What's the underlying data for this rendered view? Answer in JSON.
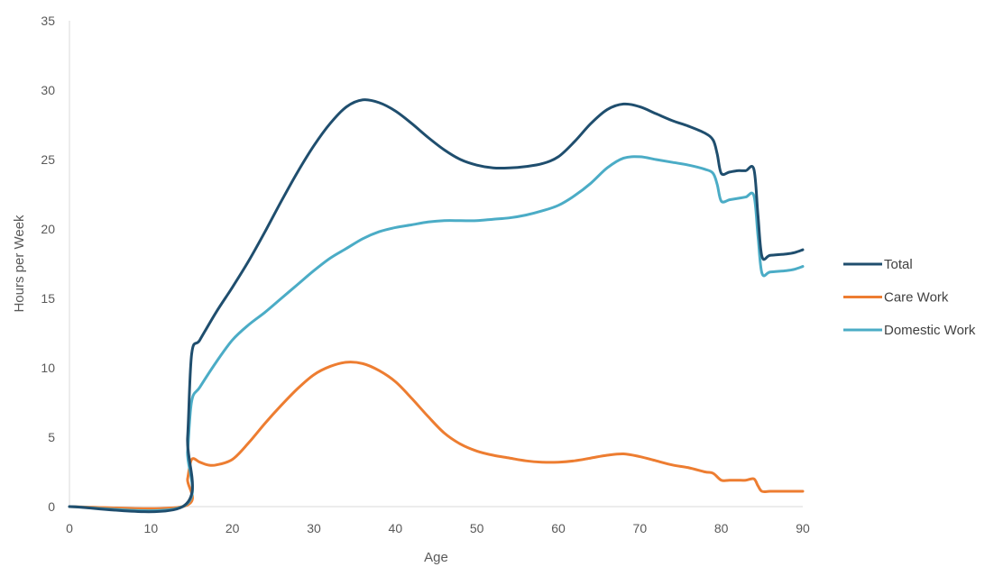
{
  "chart_data": {
    "type": "line",
    "xlabel": "Age",
    "ylabel": "Hours per Week",
    "xlim": [
      0,
      90
    ],
    "ylim": [
      0,
      35
    ],
    "xticks": [
      "0",
      "10",
      "20",
      "30",
      "40",
      "50",
      "60",
      "70",
      "80",
      "90"
    ],
    "yticks": [
      "0",
      "5",
      "10",
      "15",
      "20",
      "25",
      "30",
      "35"
    ],
    "grid": false,
    "legend_position": "right",
    "series": [
      {
        "name": "Total",
        "color": "#1f4e6e",
        "points": [
          [
            0,
            0
          ],
          [
            13.9,
            0
          ],
          [
            14.5,
            5
          ],
          [
            15,
            11
          ],
          [
            16,
            12
          ],
          [
            18,
            14
          ],
          [
            20,
            15.8
          ],
          [
            22,
            17.7
          ],
          [
            24,
            19.8
          ],
          [
            26,
            22
          ],
          [
            28,
            24.1
          ],
          [
            30,
            26
          ],
          [
            32,
            27.6
          ],
          [
            34,
            28.8
          ],
          [
            36,
            29.3
          ],
          [
            38,
            29.1
          ],
          [
            40,
            28.5
          ],
          [
            42,
            27.6
          ],
          [
            44,
            26.6
          ],
          [
            46,
            25.7
          ],
          [
            48,
            25
          ],
          [
            50,
            24.6
          ],
          [
            52,
            24.4
          ],
          [
            54,
            24.4
          ],
          [
            56,
            24.5
          ],
          [
            58,
            24.7
          ],
          [
            60,
            25.2
          ],
          [
            62,
            26.3
          ],
          [
            64,
            27.6
          ],
          [
            66,
            28.6
          ],
          [
            68,
            29
          ],
          [
            70,
            28.8
          ],
          [
            72,
            28.3
          ],
          [
            74,
            27.8
          ],
          [
            76,
            27.4
          ],
          [
            78,
            26.9
          ],
          [
            79,
            26.4
          ],
          [
            79.5,
            25.4
          ],
          [
            80,
            24
          ],
          [
            81,
            24.1
          ],
          [
            82,
            24.2
          ],
          [
            83,
            24.2
          ],
          [
            84,
            24.3
          ],
          [
            84.5,
            21
          ],
          [
            85,
            18
          ],
          [
            86,
            18.1
          ],
          [
            88,
            18.2
          ],
          [
            89,
            18.3
          ],
          [
            90,
            18.5
          ]
        ]
      },
      {
        "name": "Care Work",
        "color": "#ed7d31",
        "points": [
          [
            0,
            0
          ],
          [
            13.9,
            0
          ],
          [
            14.5,
            2
          ],
          [
            15,
            3.4
          ],
          [
            16,
            3.2
          ],
          [
            17,
            3
          ],
          [
            18,
            3
          ],
          [
            20,
            3.4
          ],
          [
            22,
            4.6
          ],
          [
            24,
            6
          ],
          [
            26,
            7.3
          ],
          [
            28,
            8.5
          ],
          [
            30,
            9.5
          ],
          [
            32,
            10.1
          ],
          [
            34,
            10.4
          ],
          [
            36,
            10.3
          ],
          [
            38,
            9.8
          ],
          [
            40,
            9
          ],
          [
            42,
            7.8
          ],
          [
            44,
            6.5
          ],
          [
            46,
            5.3
          ],
          [
            48,
            4.5
          ],
          [
            50,
            4
          ],
          [
            52,
            3.7
          ],
          [
            54,
            3.5
          ],
          [
            56,
            3.3
          ],
          [
            58,
            3.2
          ],
          [
            60,
            3.2
          ],
          [
            62,
            3.3
          ],
          [
            64,
            3.5
          ],
          [
            66,
            3.7
          ],
          [
            68,
            3.8
          ],
          [
            70,
            3.6
          ],
          [
            72,
            3.3
          ],
          [
            74,
            3
          ],
          [
            76,
            2.8
          ],
          [
            78,
            2.5
          ],
          [
            79,
            2.4
          ],
          [
            80,
            1.9
          ],
          [
            81,
            1.9
          ],
          [
            82,
            1.9
          ],
          [
            83,
            1.9
          ],
          [
            84,
            2
          ],
          [
            84.5,
            1.5
          ],
          [
            85,
            1.1
          ],
          [
            86,
            1.1
          ],
          [
            88,
            1.1
          ],
          [
            90,
            1.1
          ]
        ]
      },
      {
        "name": "Domestic Work",
        "color": "#4bacc6",
        "points": [
          [
            0,
            0
          ],
          [
            13.9,
            0
          ],
          [
            14.5,
            4
          ],
          [
            15,
            7.6
          ],
          [
            16,
            8.6
          ],
          [
            18,
            10.4
          ],
          [
            20,
            12
          ],
          [
            22,
            13.1
          ],
          [
            24,
            14
          ],
          [
            26,
            15
          ],
          [
            28,
            16
          ],
          [
            30,
            17
          ],
          [
            32,
            17.9
          ],
          [
            34,
            18.6
          ],
          [
            36,
            19.3
          ],
          [
            38,
            19.8
          ],
          [
            40,
            20.1
          ],
          [
            42,
            20.3
          ],
          [
            44,
            20.5
          ],
          [
            46,
            20.6
          ],
          [
            48,
            20.6
          ],
          [
            50,
            20.6
          ],
          [
            52,
            20.7
          ],
          [
            54,
            20.8
          ],
          [
            56,
            21
          ],
          [
            58,
            21.3
          ],
          [
            60,
            21.7
          ],
          [
            62,
            22.4
          ],
          [
            64,
            23.3
          ],
          [
            66,
            24.4
          ],
          [
            68,
            25.1
          ],
          [
            70,
            25.2
          ],
          [
            72,
            25
          ],
          [
            74,
            24.8
          ],
          [
            76,
            24.6
          ],
          [
            78,
            24.3
          ],
          [
            79,
            24
          ],
          [
            79.5,
            23.2
          ],
          [
            80,
            22
          ],
          [
            81,
            22.1
          ],
          [
            82,
            22.2
          ],
          [
            83,
            22.3
          ],
          [
            84,
            22.4
          ],
          [
            84.5,
            19.5
          ],
          [
            85,
            16.8
          ],
          [
            86,
            16.9
          ],
          [
            88,
            17
          ],
          [
            89,
            17.1
          ],
          [
            90,
            17.3
          ]
        ]
      }
    ]
  }
}
